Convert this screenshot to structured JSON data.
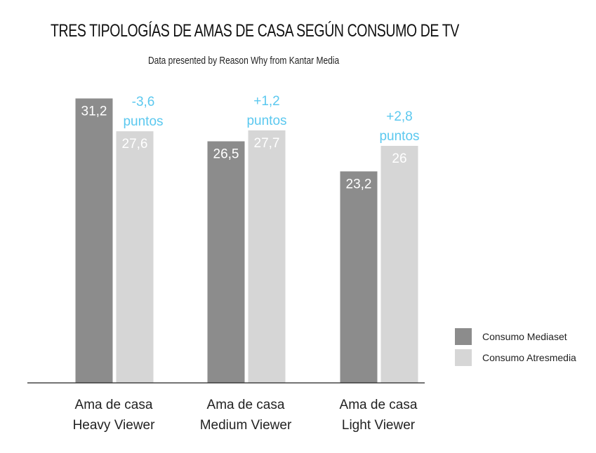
{
  "title": "TRES TIPOLOGÍAS DE AMAS DE CASA SEGÚN CONSUMO DE TV",
  "subtitle": "Data presented by Reason Why from Kantar Media",
  "colors": {
    "mediaset": "#8c8c8c",
    "atresmedia": "#d6d6d6",
    "annotation": "#5bc8ef",
    "axis": "#222222",
    "bar_label_light": "#ffffff"
  },
  "chart_data": {
    "type": "bar",
    "categories": [
      [
        "Ama de casa",
        "Heavy Viewer"
      ],
      [
        "Ama de casa",
        "Medium Viewer"
      ],
      [
        "Ama de casa",
        "Light Viewer"
      ]
    ],
    "series": [
      {
        "name": "Consumo Mediaset",
        "values": [
          31.2,
          26.5,
          23.2
        ],
        "labels": [
          "31,2",
          "26,5",
          "23,2"
        ]
      },
      {
        "name": "Consumo Atresmedia",
        "values": [
          27.6,
          27.7,
          26
        ],
        "labels": [
          "27,6",
          "27,7",
          "26"
        ]
      }
    ],
    "annotations": [
      [
        "-3,6",
        "puntos"
      ],
      [
        "+1,2",
        "puntos"
      ],
      [
        "+2,8",
        "puntos"
      ]
    ],
    "ylim": [
      0,
      32
    ],
    "grid": false,
    "legend_position": "right"
  }
}
